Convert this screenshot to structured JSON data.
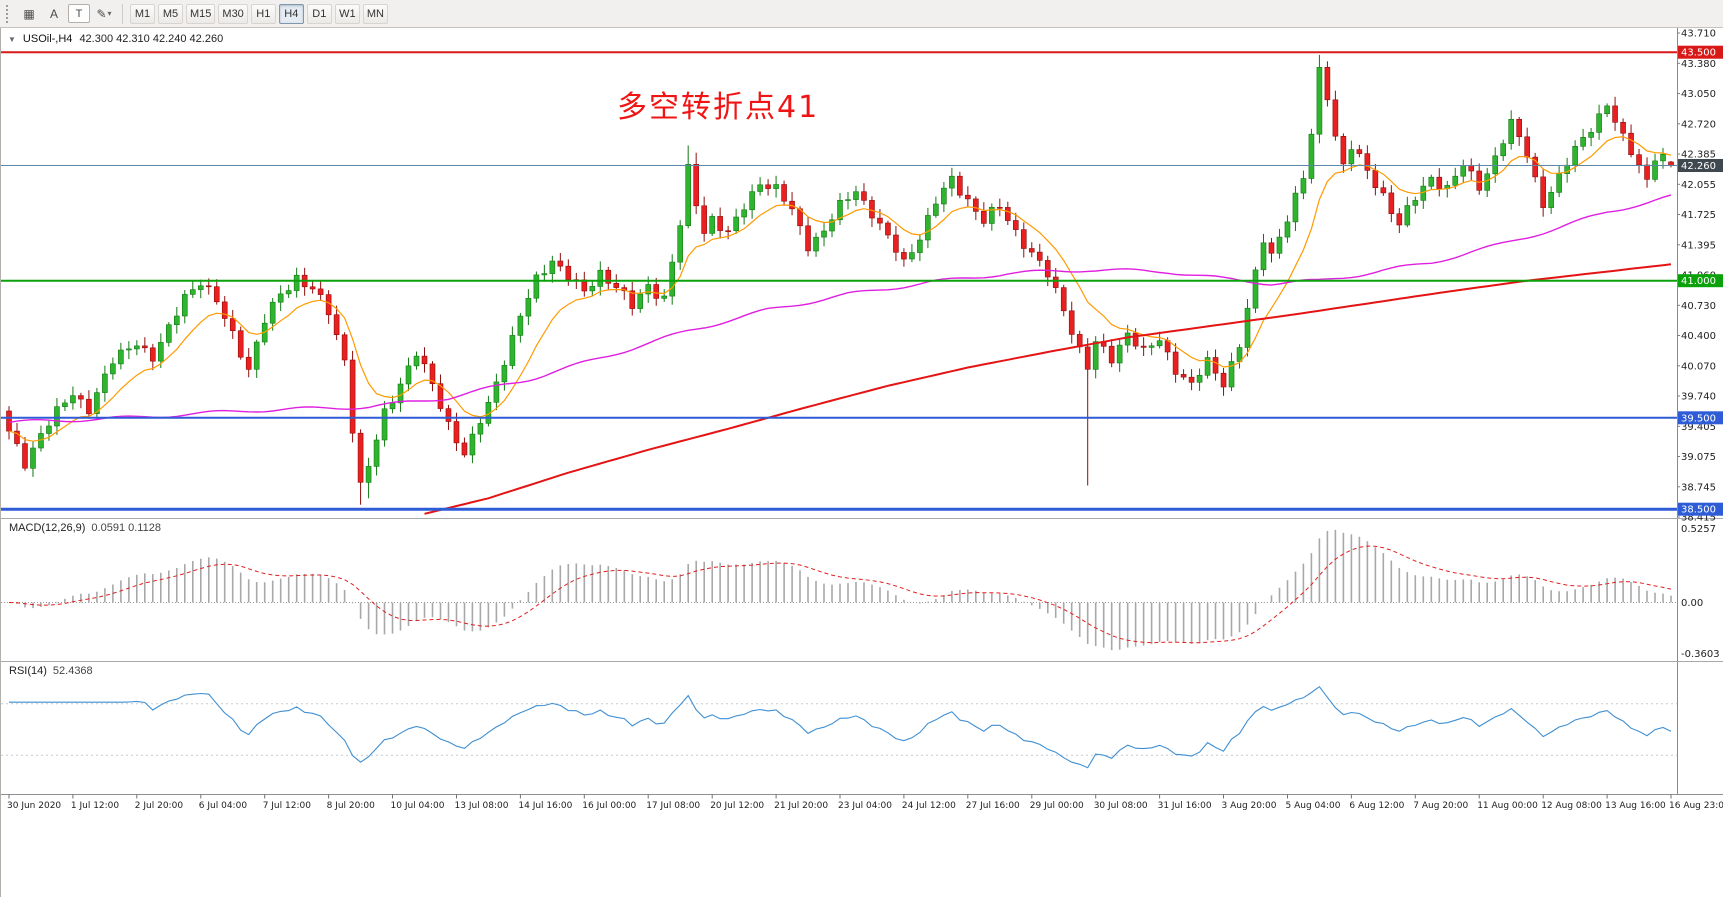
{
  "toolbar": {
    "icons": [
      {
        "name": "chart-window-icon",
        "glyph": "▦"
      },
      {
        "name": "cursor-a-icon",
        "glyph": "A"
      },
      {
        "name": "text-tool-icon",
        "glyph": "T"
      },
      {
        "name": "objects-tool-icon",
        "glyph": "✎"
      }
    ],
    "dropdown_caret": "▾",
    "timeframes": [
      "M1",
      "M5",
      "M15",
      "M30",
      "H1",
      "H4",
      "D1",
      "W1",
      "MN"
    ],
    "active_timeframe": "H4"
  },
  "chart": {
    "collapse_caret": "▼",
    "symbol_period": "USOil-,H4",
    "ohlc": "42.300 42.310 42.240 42.260",
    "annotation": {
      "text": "多空转折点41",
      "color": "#f01414"
    }
  },
  "chart_data": {
    "type": "candlestick",
    "symbol": "USOil-",
    "timeframe": "H4",
    "last_ohlc": {
      "open": 42.3,
      "high": 42.31,
      "low": 42.24,
      "close": 42.26
    },
    "ylim": [
      38.415,
      43.71
    ],
    "price_ticks": [
      "43.710",
      "43.380",
      "43.050",
      "42.720",
      "42.385",
      "42.055",
      "41.725",
      "41.395",
      "41.060",
      "40.730",
      "40.400",
      "40.070",
      "39.740",
      "39.405",
      "39.075",
      "38.745",
      "38.415"
    ],
    "hlines": [
      {
        "price": 43.5,
        "label": "43.500",
        "color": "#d91818",
        "width": 2
      },
      {
        "price": 42.26,
        "label": "42.260",
        "color": "#5b87a8",
        "width": 1,
        "label_bg": "#40484f"
      },
      {
        "price": 41.0,
        "label": "41.000",
        "color": "#0aa10a",
        "width": 2
      },
      {
        "price": 39.5,
        "label": "39.500",
        "color": "#2d5cd6",
        "width": 2
      },
      {
        "price": 38.5,
        "label": "38.500",
        "color": "#2d5cd6",
        "width": 3
      }
    ],
    "time_labels": [
      "30 Jun 2020",
      "1 Jul 12:00",
      "2 Jul 20:00",
      "6 Jul 04:00",
      "7 Jul 12:00",
      "8 Jul 20:00",
      "10 Jul 04:00",
      "13 Jul 08:00",
      "14 Jul 16:00",
      "16 Jul 00:00",
      "17 Jul 08:00",
      "20 Jul 12:00",
      "21 Jul 20:00",
      "23 Jul 04:00",
      "24 Jul 12:00",
      "27 Jul 16:00",
      "29 Jul 00:00",
      "30 Jul 08:00",
      "31 Jul 16:00",
      "3 Aug 20:00",
      "5 Aug 04:00",
      "6 Aug 12:00",
      "7 Aug 20:00",
      "11 Aug 00:00",
      "12 Aug 08:00",
      "13 Aug 16:00",
      "16 Aug 23:00"
    ],
    "num_candles": 209,
    "candles_per_label": 8,
    "close_waypoints": [
      [
        0,
        39.32
      ],
      [
        2,
        39.0
      ],
      [
        4,
        39.35
      ],
      [
        6,
        39.55
      ],
      [
        8,
        39.75
      ],
      [
        10,
        39.62
      ],
      [
        13,
        40.1
      ],
      [
        16,
        40.35
      ],
      [
        18,
        40.15
      ],
      [
        20,
        40.45
      ],
      [
        22,
        40.85
      ],
      [
        24,
        41.0
      ],
      [
        26,
        40.75
      ],
      [
        28,
        40.42
      ],
      [
        30,
        40.05
      ],
      [
        32,
        40.55
      ],
      [
        34,
        40.85
      ],
      [
        36,
        41.05
      ],
      [
        38,
        40.9
      ],
      [
        40,
        40.65
      ],
      [
        42,
        40.15
      ],
      [
        43,
        39.4
      ],
      [
        44,
        38.75
      ],
      [
        45,
        38.95
      ],
      [
        47,
        39.55
      ],
      [
        49,
        39.9
      ],
      [
        51,
        40.2
      ],
      [
        53,
        39.85
      ],
      [
        55,
        39.45
      ],
      [
        57,
        39.1
      ],
      [
        58,
        39.25
      ],
      [
        60,
        39.65
      ],
      [
        62,
        40.15
      ],
      [
        64,
        40.6
      ],
      [
        66,
        41.0
      ],
      [
        68,
        41.25
      ],
      [
        70,
        41.05
      ],
      [
        72,
        40.85
      ],
      [
        74,
        41.1
      ],
      [
        76,
        40.95
      ],
      [
        78,
        40.7
      ],
      [
        80,
        40.95
      ],
      [
        82,
        40.82
      ],
      [
        83,
        41.2
      ],
      [
        84,
        41.6
      ],
      [
        85,
        42.2
      ],
      [
        86,
        41.85
      ],
      [
        87,
        41.55
      ],
      [
        88,
        41.7
      ],
      [
        90,
        41.5
      ],
      [
        92,
        41.8
      ],
      [
        94,
        42.1
      ],
      [
        96,
        42.0
      ],
      [
        98,
        41.75
      ],
      [
        100,
        41.4
      ],
      [
        102,
        41.55
      ],
      [
        104,
        41.8
      ],
      [
        106,
        42.0
      ],
      [
        108,
        41.75
      ],
      [
        110,
        41.45
      ],
      [
        112,
        41.2
      ],
      [
        114,
        41.5
      ],
      [
        116,
        41.85
      ],
      [
        118,
        42.1
      ],
      [
        120,
        41.9
      ],
      [
        122,
        41.65
      ],
      [
        124,
        41.8
      ],
      [
        126,
        41.55
      ],
      [
        128,
        41.3
      ],
      [
        130,
        41.05
      ],
      [
        132,
        40.7
      ],
      [
        134,
        40.25
      ],
      [
        135,
        40.05
      ],
      [
        136,
        40.3
      ],
      [
        138,
        40.15
      ],
      [
        140,
        40.45
      ],
      [
        142,
        40.2
      ],
      [
        144,
        40.35
      ],
      [
        146,
        40.05
      ],
      [
        148,
        39.85
      ],
      [
        150,
        40.1
      ],
      [
        152,
        39.9
      ],
      [
        154,
        40.3
      ],
      [
        156,
        41.05
      ],
      [
        157,
        41.45
      ],
      [
        158,
        41.3
      ],
      [
        160,
        41.7
      ],
      [
        162,
        42.1
      ],
      [
        163,
        42.6
      ],
      [
        164,
        43.3
      ],
      [
        165,
        43.05
      ],
      [
        166,
        42.6
      ],
      [
        167,
        42.25
      ],
      [
        168,
        42.45
      ],
      [
        170,
        42.2
      ],
      [
        172,
        41.95
      ],
      [
        174,
        41.6
      ],
      [
        176,
        41.9
      ],
      [
        178,
        42.15
      ],
      [
        180,
        42.0
      ],
      [
        182,
        42.25
      ],
      [
        184,
        42.05
      ],
      [
        186,
        42.35
      ],
      [
        188,
        42.7
      ],
      [
        190,
        42.4
      ],
      [
        192,
        41.85
      ],
      [
        194,
        42.1
      ],
      [
        196,
        42.45
      ],
      [
        198,
        42.7
      ],
      [
        200,
        42.9
      ],
      [
        202,
        42.55
      ],
      [
        204,
        42.3
      ],
      [
        205,
        42.1
      ],
      [
        206,
        42.35
      ],
      [
        208,
        42.3
      ]
    ],
    "overrides": {
      "2": {
        "l": 38.92
      },
      "44": {
        "l": 38.55
      },
      "45": {
        "l": 38.62
      },
      "85": {
        "h": 42.48
      },
      "86": {
        "h": 42.4
      },
      "135": {
        "l": 38.76
      },
      "164": {
        "h": 43.47
      },
      "165": {
        "h": 43.4
      },
      "208": {
        "o": 42.3,
        "h": 42.31,
        "l": 42.24,
        "c": 42.26
      }
    },
    "moving_averages": {
      "fast": {
        "period": 10,
        "color": "#ff9a00"
      },
      "mid": {
        "color": "#e020e0",
        "waypoints": [
          [
            0,
            39.45
          ],
          [
            15,
            39.5
          ],
          [
            30,
            39.58
          ],
          [
            45,
            39.62
          ],
          [
            55,
            39.72
          ],
          [
            65,
            39.92
          ],
          [
            75,
            40.18
          ],
          [
            85,
            40.45
          ],
          [
            95,
            40.68
          ],
          [
            105,
            40.85
          ],
          [
            115,
            40.98
          ],
          [
            125,
            41.08
          ],
          [
            135,
            41.12
          ],
          [
            145,
            41.1
          ],
          [
            152,
            41.02
          ],
          [
            158,
            40.97
          ],
          [
            164,
            41.0
          ],
          [
            170,
            41.08
          ],
          [
            178,
            41.2
          ],
          [
            186,
            41.38
          ],
          [
            194,
            41.58
          ],
          [
            200,
            41.75
          ],
          [
            208,
            41.92
          ]
        ]
      },
      "slow": {
        "color": "#e51414",
        "width": 2,
        "waypoints": [
          [
            52,
            38.45
          ],
          [
            60,
            38.62
          ],
          [
            70,
            38.9
          ],
          [
            80,
            39.15
          ],
          [
            90,
            39.38
          ],
          [
            100,
            39.62
          ],
          [
            110,
            39.85
          ],
          [
            120,
            40.05
          ],
          [
            130,
            40.22
          ],
          [
            140,
            40.38
          ],
          [
            150,
            40.5
          ],
          [
            160,
            40.62
          ],
          [
            170,
            40.75
          ],
          [
            180,
            40.88
          ],
          [
            190,
            41.0
          ],
          [
            200,
            41.1
          ],
          [
            208,
            41.18
          ]
        ]
      }
    },
    "macd": {
      "label": "MACD(12,26,9)",
      "values": "0.0591 0.1128",
      "fast": 12,
      "slow": 26,
      "signal": 9,
      "axis_labels": [
        "0.5257",
        "0.00",
        "-0.3603"
      ],
      "hist_color": "#a8a8a8",
      "signal_color": "#e02020"
    },
    "rsi": {
      "label": "RSI(14)",
      "value": "52.4368",
      "period": 14,
      "levels": [
        "70",
        "30"
      ],
      "color": "#3f8fd2"
    },
    "candle_colors": {
      "up": "#2fb42f",
      "up_border": "#127a12",
      "down": "#ea1f1f",
      "down_border": "#8e0e0e"
    }
  }
}
